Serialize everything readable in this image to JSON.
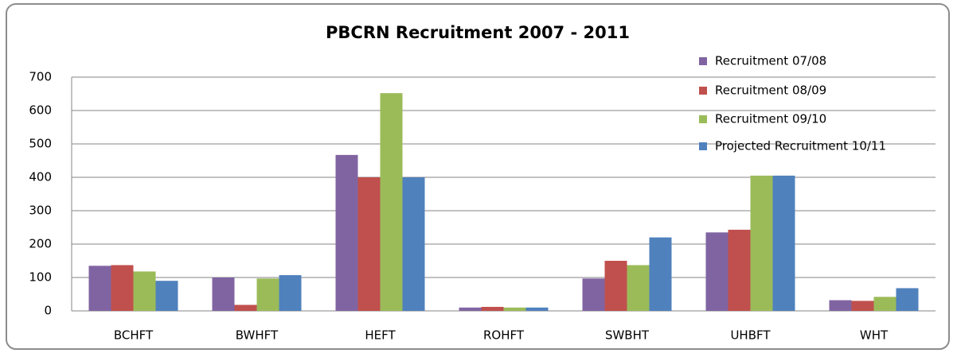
{
  "chart_data": {
    "type": "bar",
    "title": "PBCRN Recruitment 2007 - 2011",
    "categories": [
      "BCHFT",
      "BWHFT",
      "HEFT",
      "ROHFT",
      "SWBHT",
      "UHBFT",
      "WHT"
    ],
    "series": [
      {
        "name": "Recruitment 07/08",
        "color": "#8064a2",
        "values": [
          135,
          100,
          467,
          10,
          97,
          235,
          32
        ]
      },
      {
        "name": "Recruitment 08/09",
        "color": "#c0504d",
        "values": [
          137,
          18,
          400,
          12,
          150,
          243,
          30
        ]
      },
      {
        "name": "Recruitment 09/10",
        "color": "#9bbb59",
        "values": [
          118,
          97,
          652,
          10,
          137,
          405,
          42
        ]
      },
      {
        "name": "Projected Recruitment 10/11",
        "color": "#4f81bd",
        "values": [
          90,
          107,
          400,
          10,
          220,
          405,
          68
        ]
      }
    ],
    "ylim": [
      0,
      700
    ],
    "yticks": [
      0,
      100,
      200,
      300,
      400,
      500,
      600,
      700
    ],
    "grid": true,
    "legend": "top-right"
  }
}
